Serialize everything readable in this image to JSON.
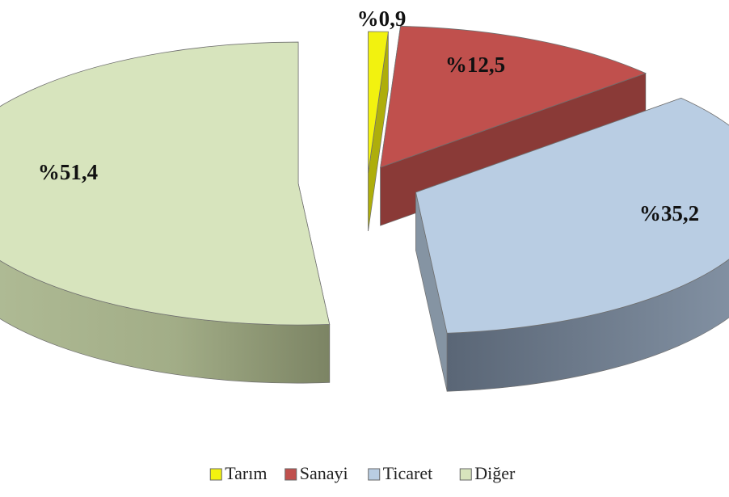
{
  "chart_data": {
    "type": "pie",
    "title": "",
    "three_d": true,
    "exploded": true,
    "legend_position": "bottom",
    "series": [
      {
        "name": "Tarım",
        "value": 0.9,
        "label": "%0,9",
        "color": "#f2f20f"
      },
      {
        "name": "Sanayi",
        "value": 12.5,
        "label": "%12,5",
        "color": "#c0504d"
      },
      {
        "name": "Ticaret",
        "value": 35.2,
        "label": "%35,2",
        "color": "#b9cde3"
      },
      {
        "name": "Diğer",
        "value": 51.4,
        "label": "%51,4",
        "color": "#d7e4bd"
      }
    ]
  }
}
